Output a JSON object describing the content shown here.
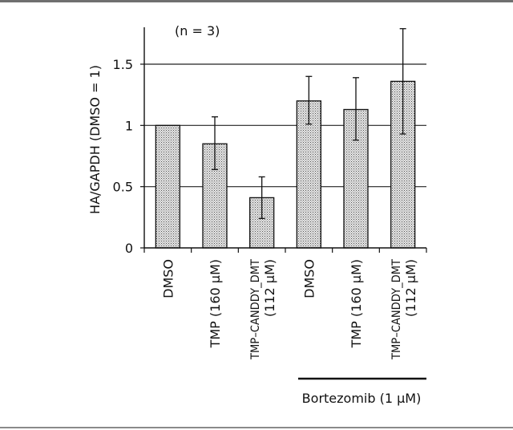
{
  "chart_data": {
    "type": "bar",
    "annotation": "(n = 3)",
    "ylabel": "HA/GAPDH (DMSO = 1)",
    "ylim": [
      0,
      1.5
    ],
    "yticks": [
      "0",
      "0.5",
      "1",
      "1.5"
    ],
    "grid": "horizontal",
    "categories": [
      [
        "DMSO"
      ],
      [
        "TMP (160 μM)"
      ],
      [
        "TMP–CANDDY_DMT",
        "(112 μM)"
      ],
      [
        "DMSO"
      ],
      [
        "TMP (160 μM)"
      ],
      [
        "TMP–CANDDY_DMT",
        "(112 μM)"
      ]
    ],
    "values": [
      1.0,
      0.85,
      0.41,
      1.2,
      1.13,
      1.36
    ],
    "error_low": [
      0.0,
      0.21,
      0.17,
      0.19,
      0.25,
      0.43
    ],
    "error_high": [
      0.0,
      0.22,
      0.17,
      0.2,
      0.26,
      0.43
    ],
    "group_label": "Bortezomib (1 μM)",
    "bar_fill": "#cfcfcf",
    "bar_stroke": "#111111"
  }
}
